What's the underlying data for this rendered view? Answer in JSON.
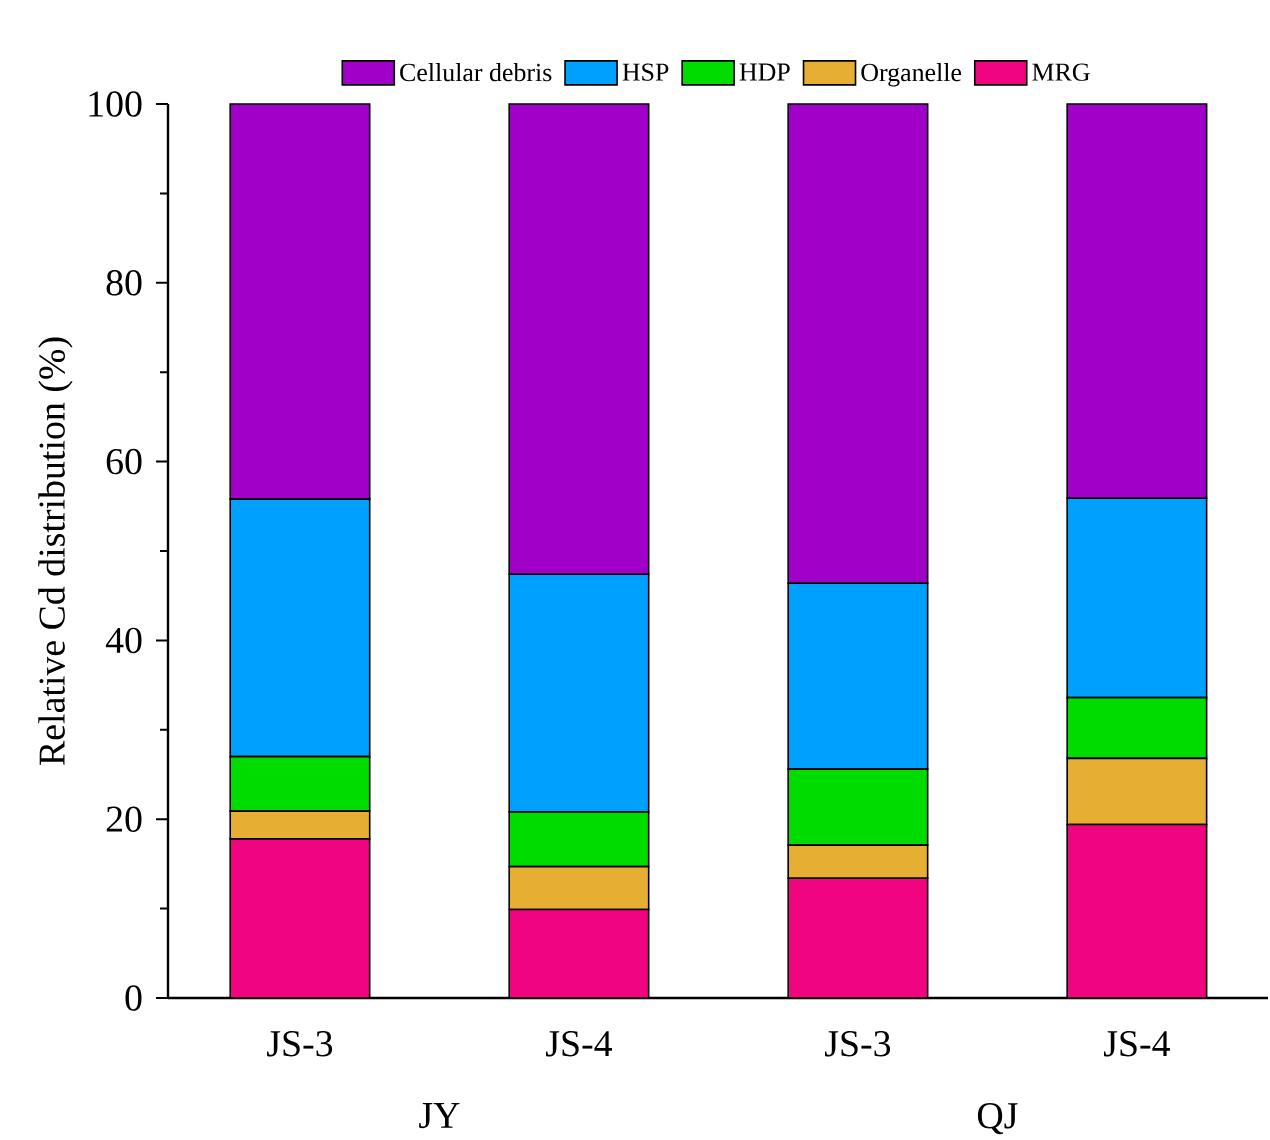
{
  "chart_data": {
    "type": "bar",
    "stacked": true,
    "ylabel": "Relative Cd distribution (%)",
    "categories": [
      "JS-3",
      "JS-4",
      "JS-3",
      "JS-4"
    ],
    "series": [
      {
        "name": "MRG",
        "color": "#f0047f",
        "values": [
          17.8,
          9.9,
          13.4,
          19.4
        ]
      },
      {
        "name": "Organelle",
        "color": "#e6ae32",
        "values": [
          3.1,
          4.8,
          3.7,
          7.4
        ]
      },
      {
        "name": "HDP",
        "color": "#00dc00",
        "values": [
          6.1,
          6.1,
          8.5,
          6.8
        ]
      },
      {
        "name": "HSP",
        "color": "#00a0ff",
        "values": [
          28.8,
          26.6,
          20.8,
          22.3
        ]
      },
      {
        "name": "Cellular debris",
        "color": "#a000c8",
        "values": [
          44.2,
          52.6,
          53.6,
          44.1
        ]
      }
    ],
    "ylim": [
      0,
      100
    ],
    "yticks": [
      0,
      20,
      40,
      60,
      80,
      100
    ],
    "legend": "top",
    "grid": false,
    "annotations": [
      "JY",
      "QJ"
    ]
  }
}
